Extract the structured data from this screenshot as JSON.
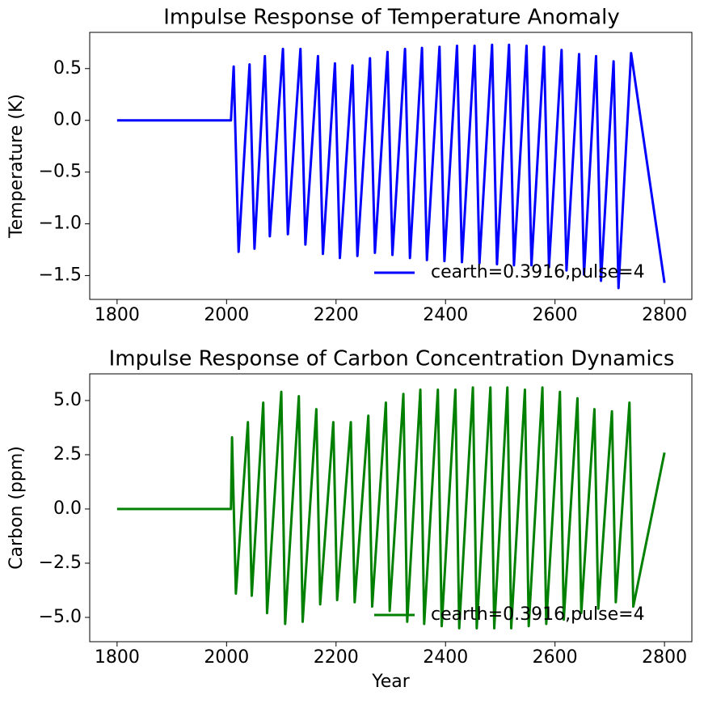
{
  "chart_data": [
    {
      "type": "line",
      "title": "Impulse Response of Temperature Anomaly",
      "ylabel": "Temperature (K)",
      "x": [
        1800,
        2008,
        2013,
        2022,
        2042,
        2051,
        2070,
        2079,
        2103,
        2112,
        2135,
        2144,
        2167,
        2176,
        2198,
        2207,
        2230,
        2239,
        2262,
        2271,
        2294,
        2303,
        2326,
        2335,
        2357,
        2366,
        2389,
        2398,
        2421,
        2430,
        2453,
        2462,
        2485,
        2494,
        2516,
        2525,
        2548,
        2557,
        2580,
        2589,
        2612,
        2621,
        2644,
        2653,
        2675,
        2684,
        2707,
        2716,
        2739,
        2800
      ],
      "series": [
        {
          "name": "cearth=0.3916,pulse=4",
          "color": "#0000ff",
          "values": [
            0,
            0,
            0.52,
            -1.27,
            0.54,
            -1.24,
            0.62,
            -1.12,
            0.69,
            -1.1,
            0.69,
            -1.2,
            0.62,
            -1.29,
            0.55,
            -1.33,
            0.53,
            -1.31,
            0.6,
            -1.28,
            0.66,
            -1.3,
            0.69,
            -1.33,
            0.7,
            -1.35,
            0.71,
            -1.36,
            0.72,
            -1.37,
            0.72,
            -1.38,
            0.73,
            -1.39,
            0.73,
            -1.4,
            0.72,
            -1.4,
            0.71,
            -1.42,
            0.68,
            -1.45,
            0.64,
            -1.49,
            0.62,
            -1.55,
            0.57,
            -1.62,
            0.65,
            -1.57
          ]
        }
      ],
      "xlim": [
        1750,
        2850
      ],
      "xticks": [
        1800,
        2000,
        2200,
        2400,
        2600,
        2800
      ],
      "ylim": [
        -1.73,
        0.85
      ],
      "yticks": [
        {
          "value": -1.5,
          "label": "−1.5"
        },
        {
          "value": -1.0,
          "label": "−1.0"
        },
        {
          "value": -0.5,
          "label": "−0.5"
        },
        {
          "value": 0,
          "label": "0.0"
        },
        0.5
      ],
      "legend": "lower right",
      "grid": false
    },
    {
      "type": "line",
      "title": "Impulse Response of Carbon Concentration Dynamics",
      "xlabel": "Year",
      "ylabel": "Carbon (ppm)",
      "x": [
        1800,
        2008,
        2010,
        2017,
        2039,
        2046,
        2067,
        2074,
        2100,
        2107,
        2132,
        2139,
        2164,
        2171,
        2195,
        2202,
        2227,
        2234,
        2259,
        2266,
        2291,
        2298,
        2323,
        2330,
        2354,
        2361,
        2386,
        2393,
        2418,
        2425,
        2450,
        2457,
        2482,
        2489,
        2513,
        2520,
        2545,
        2552,
        2577,
        2584,
        2609,
        2616,
        2641,
        2648,
        2672,
        2679,
        2704,
        2711,
        2736,
        2743,
        2800
      ],
      "series": [
        {
          "name": "cearth=0.3916,pulse=4",
          "color": "#008000",
          "values": [
            0,
            0,
            3.3,
            -3.9,
            4.0,
            -4.0,
            4.9,
            -4.8,
            5.4,
            -5.3,
            5.2,
            -5.2,
            4.6,
            -4.4,
            4.0,
            -4.2,
            4.0,
            -4.3,
            4.3,
            -4.5,
            4.9,
            -4.7,
            5.3,
            -5.2,
            5.5,
            -5.3,
            5.5,
            -5.4,
            5.5,
            -5.5,
            5.6,
            -5.5,
            5.6,
            -5.5,
            5.6,
            -5.5,
            5.5,
            -5.4,
            5.6,
            -5.3,
            5.4,
            -5.1,
            5.1,
            -4.8,
            4.6,
            -4.6,
            4.5,
            -4.3,
            4.9,
            -4.5,
            2.6
          ]
        }
      ],
      "xlim": [
        1750,
        2850
      ],
      "xticks": [
        1800,
        2000,
        2200,
        2400,
        2600,
        2800
      ],
      "ylim": [
        -6.12,
        6.23
      ],
      "yticks": [
        {
          "value": -5,
          "label": "−5.0"
        },
        {
          "value": -2.5,
          "label": "−2.5"
        },
        {
          "value": 0,
          "label": "0.0"
        },
        {
          "value": 2.5,
          "label": "2.5"
        },
        {
          "value": 5,
          "label": "5.0"
        }
      ],
      "legend": "lower right",
      "grid": false
    }
  ]
}
